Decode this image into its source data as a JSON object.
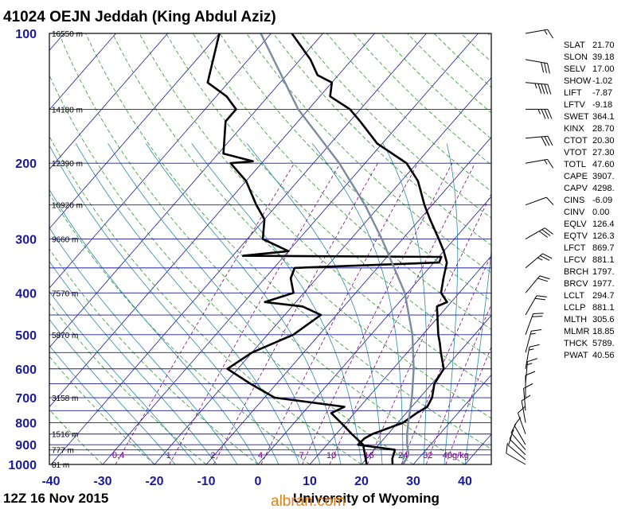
{
  "title": "41024 OEJN Jeddah (King Abdul Aziz)",
  "footer_left": "12Z 16 Nov 2015",
  "footer_right": "University of Wyoming",
  "watermark": "albran.com",
  "colors": {
    "border": "#000000",
    "isobar": "#1a1a9a",
    "isotherm": "#1a1a9a",
    "dry_adiabat": "#2a9a2a",
    "moist_adiabat": "#2a8aaa",
    "mixing_ratio": "#800080",
    "parcel": "#7a8aa0",
    "sounding": "#000000"
  },
  "chart_data": {
    "type": "line",
    "xlabel": "",
    "ylabel": "",
    "xlim": [
      -40,
      45
    ],
    "ylim_hpa": [
      1000,
      100
    ],
    "x_ticks": [
      "-40",
      "-30",
      "-20",
      "-10",
      "0",
      "10",
      "20",
      "30",
      "40"
    ],
    "pressure_labels": [
      {
        "p": 100,
        "label": "100"
      },
      {
        "p": 200,
        "label": "200"
      },
      {
        "p": 300,
        "label": "300"
      },
      {
        "p": 400,
        "label": "400"
      },
      {
        "p": 500,
        "label": "500"
      },
      {
        "p": 600,
        "label": "600"
      },
      {
        "p": 700,
        "label": "700"
      },
      {
        "p": 800,
        "label": "800"
      },
      {
        "p": 900,
        "label": "900"
      },
      {
        "p": 1000,
        "label": "1000"
      }
    ],
    "isobars_hpa": [
      100,
      150,
      200,
      250,
      300,
      350,
      400,
      450,
      500,
      550,
      600,
      650,
      700,
      750,
      800,
      850,
      900,
      925,
      950,
      1000
    ],
    "height_labels": [
      {
        "p": 100,
        "label": "16550 m"
      },
      {
        "p": 150,
        "label": "14180 m"
      },
      {
        "p": 200,
        "label": "12390 m"
      },
      {
        "p": 250,
        "label": "10920 m"
      },
      {
        "p": 300,
        "label": "9660 m"
      },
      {
        "p": 400,
        "label": "7570 m"
      },
      {
        "p": 500,
        "label": "5870 m"
      },
      {
        "p": 700,
        "label": "3158 m"
      },
      {
        "p": 850,
        "label": "1516 m"
      },
      {
        "p": 925,
        "label": "777 m"
      },
      {
        "p": 1000,
        "label": "81 m"
      }
    ],
    "mixing_ratio_lines": [
      {
        "label": "0.4",
        "value": 0.4
      },
      {
        "label": "1",
        "value": 1
      },
      {
        "label": "2",
        "value": 2
      },
      {
        "label": "4",
        "value": 4
      },
      {
        "label": "7",
        "value": 7
      },
      {
        "label": "10",
        "value": 10
      },
      {
        "label": "16",
        "value": 16
      },
      {
        "label": "24",
        "value": 24
      },
      {
        "label": "32",
        "value": 32
      },
      {
        "label": "40g/kg",
        "value": 40
      }
    ],
    "series": [
      {
        "key": "temperature",
        "points": [
          {
            "p": 1000,
            "t": 26.0
          },
          {
            "p": 970,
            "t": 25.0
          },
          {
            "p": 925,
            "t": 24.0
          },
          {
            "p": 900,
            "t": 16.0
          },
          {
            "p": 870,
            "t": 16.2
          },
          {
            "p": 850,
            "t": 17.0
          },
          {
            "p": 800,
            "t": 21.0
          },
          {
            "p": 760,
            "t": 22.0
          },
          {
            "p": 735,
            "t": 23.0
          },
          {
            "p": 700,
            "t": 22.4
          },
          {
            "p": 650,
            "t": 20.5
          },
          {
            "p": 600,
            "t": 19.8
          },
          {
            "p": 550,
            "t": 16.5
          },
          {
            "p": 520,
            "t": 14.5
          },
          {
            "p": 500,
            "t": 13.0
          },
          {
            "p": 450,
            "t": 9.5
          },
          {
            "p": 430,
            "t": 8.0
          },
          {
            "p": 420,
            "t": 9.2
          },
          {
            "p": 400,
            "t": 6.5
          },
          {
            "p": 370,
            "t": 4.5
          },
          {
            "p": 340,
            "t": 2.5
          },
          {
            "p": 320,
            "t": 0.0
          },
          {
            "p": 300,
            "t": -3.0
          },
          {
            "p": 270,
            "t": -8.0
          },
          {
            "p": 250,
            "t": -11.5
          },
          {
            "p": 220,
            "t": -16.8
          },
          {
            "p": 200,
            "t": -22.0
          },
          {
            "p": 180,
            "t": -31.0
          },
          {
            "p": 160,
            "t": -38.0
          },
          {
            "p": 150,
            "t": -42.0
          },
          {
            "p": 140,
            "t": -48.0
          },
          {
            "p": 130,
            "t": -50.0
          },
          {
            "p": 125,
            "t": -54.0
          },
          {
            "p": 115,
            "t": -58.0
          },
          {
            "p": 100,
            "t": -66.0
          }
        ]
      },
      {
        "key": "dewpoint",
        "points": [
          {
            "p": 1000,
            "t": 21.0
          },
          {
            "p": 900,
            "t": 17.0
          },
          {
            "p": 850,
            "t": 13.0
          },
          {
            "p": 800,
            "t": 9.0
          },
          {
            "p": 760,
            "t": 5.5
          },
          {
            "p": 735,
            "t": 7.0
          },
          {
            "p": 700,
            "t": -8.0
          },
          {
            "p": 650,
            "t": -15.0
          },
          {
            "p": 600,
            "t": -22.0
          },
          {
            "p": 550,
            "t": -20.0
          },
          {
            "p": 500,
            "t": -15.0
          },
          {
            "p": 450,
            "t": -13.0
          },
          {
            "p": 430,
            "t": -18.0
          },
          {
            "p": 420,
            "t": -26.0
          },
          {
            "p": 400,
            "t": -22.0
          },
          {
            "p": 370,
            "t": -25.0
          },
          {
            "p": 350,
            "t": -26.0
          },
          {
            "p": 340,
            "t": 1.0
          },
          {
            "p": 330,
            "t": 0.5
          },
          {
            "p": 328,
            "t": -38.0
          },
          {
            "p": 320,
            "t": -30.0
          },
          {
            "p": 300,
            "t": -37.0
          },
          {
            "p": 270,
            "t": -40.0
          },
          {
            "p": 250,
            "t": -44.0
          },
          {
            "p": 220,
            "t": -50.0
          },
          {
            "p": 200,
            "t": -56.0
          },
          {
            "p": 198,
            "t": -52.0
          },
          {
            "p": 190,
            "t": -59.0
          },
          {
            "p": 160,
            "t": -64.0
          },
          {
            "p": 150,
            "t": -64.0
          },
          {
            "p": 140,
            "t": -68.0
          },
          {
            "p": 130,
            "t": -74.0
          },
          {
            "p": 100,
            "t": -80.0
          }
        ]
      },
      {
        "key": "parcel",
        "points": [
          {
            "p": 1000,
            "t": 28.0
          },
          {
            "p": 950,
            "t": 27.5
          },
          {
            "p": 900,
            "t": 25.5
          },
          {
            "p": 850,
            "t": 23.7
          },
          {
            "p": 800,
            "t": 22.0
          },
          {
            "p": 700,
            "t": 18.5
          },
          {
            "p": 600,
            "t": 14.0
          },
          {
            "p": 500,
            "t": 8.0
          },
          {
            "p": 400,
            "t": -0.5
          },
          {
            "p": 300,
            "t": -14.0
          },
          {
            "p": 250,
            "t": -23.0
          },
          {
            "p": 200,
            "t": -35.0
          },
          {
            "p": 150,
            "t": -52.0
          },
          {
            "p": 100,
            "t": -72.0
          }
        ]
      }
    ]
  },
  "wind_barbs": [
    {
      "p": 100,
      "dir": 80,
      "kt": 15
    },
    {
      "p": 115,
      "dir": 100,
      "kt": 30
    },
    {
      "p": 130,
      "dir": 95,
      "kt": 45
    },
    {
      "p": 150,
      "dir": 90,
      "kt": 35
    },
    {
      "p": 175,
      "dir": 85,
      "kt": 30
    },
    {
      "p": 200,
      "dir": 80,
      "kt": 15
    },
    {
      "p": 250,
      "dir": 70,
      "kt": 10
    },
    {
      "p": 300,
      "dir": 60,
      "kt": 30
    },
    {
      "p": 350,
      "dir": 50,
      "kt": 25
    },
    {
      "p": 400,
      "dir": 40,
      "kt": 20
    },
    {
      "p": 450,
      "dir": 30,
      "kt": 20
    },
    {
      "p": 500,
      "dir": 20,
      "kt": 20
    },
    {
      "p": 550,
      "dir": 15,
      "kt": 15
    },
    {
      "p": 600,
      "dir": 10,
      "kt": 15
    },
    {
      "p": 650,
      "dir": 5,
      "kt": 15
    },
    {
      "p": 700,
      "dir": 0,
      "kt": 10
    },
    {
      "p": 750,
      "dir": 355,
      "kt": 10
    },
    {
      "p": 800,
      "dir": 350,
      "kt": 10
    },
    {
      "p": 850,
      "dir": 340,
      "kt": 10
    },
    {
      "p": 900,
      "dir": 330,
      "kt": 10
    },
    {
      "p": 925,
      "dir": 320,
      "kt": 10
    },
    {
      "p": 950,
      "dir": 315,
      "kt": 10
    },
    {
      "p": 975,
      "dir": 310,
      "kt": 10
    },
    {
      "p": 1000,
      "dir": 300,
      "kt": 10
    }
  ],
  "indices": [
    {
      "key": "SLAT",
      "value": "21.70"
    },
    {
      "key": "SLON",
      "value": "39.18"
    },
    {
      "key": "SELV",
      "value": "17.00"
    },
    {
      "key": "SHOW",
      "value": "-1.02"
    },
    {
      "key": "LIFT",
      "value": "-7.87"
    },
    {
      "key": "LFTV",
      "value": "-9.18"
    },
    {
      "key": "SWET",
      "value": "364.1"
    },
    {
      "key": "KINX",
      "value": "28.70"
    },
    {
      "key": "CTOT",
      "value": "20.30"
    },
    {
      "key": "VTOT",
      "value": "27.30"
    },
    {
      "key": "TOTL",
      "value": "47.60"
    },
    {
      "key": "CAPE",
      "value": "3907."
    },
    {
      "key": "CAPV",
      "value": "4298."
    },
    {
      "key": "CINS",
      "value": "-6.09"
    },
    {
      "key": "CINV",
      "value": "0.00"
    },
    {
      "key": "EQLV",
      "value": "126.4"
    },
    {
      "key": "EQTV",
      "value": "126.3"
    },
    {
      "key": "LFCT",
      "value": "869.7"
    },
    {
      "key": "LFCV",
      "value": "881.1"
    },
    {
      "key": "BRCH",
      "value": "1797."
    },
    {
      "key": "BRCV",
      "value": "1977."
    },
    {
      "key": "LCLT",
      "value": "294.7"
    },
    {
      "key": "LCLP",
      "value": "881.1"
    },
    {
      "key": "MLTH",
      "value": "305.6"
    },
    {
      "key": "MLMR",
      "value": "18.85"
    },
    {
      "key": "THCK",
      "value": "5789."
    },
    {
      "key": "PWAT",
      "value": "40.56"
    }
  ]
}
